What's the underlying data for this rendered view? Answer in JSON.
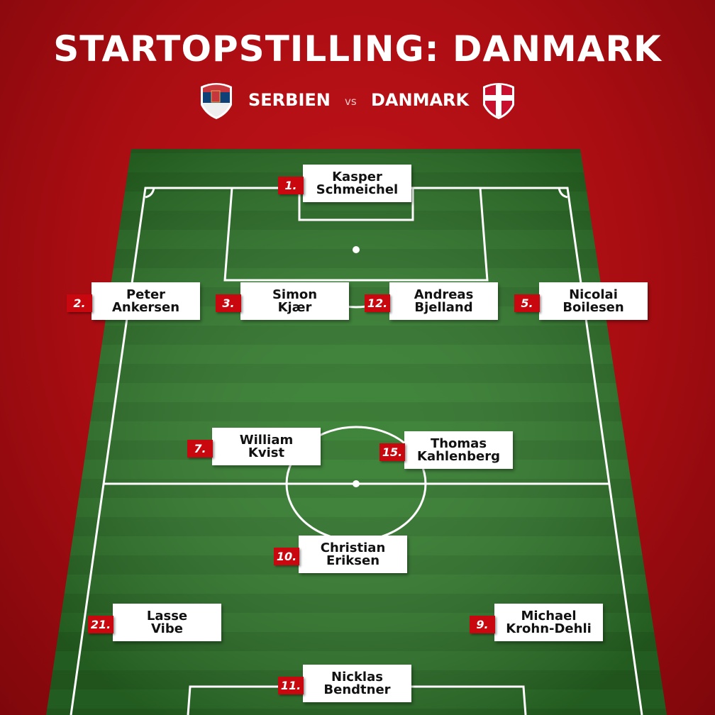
{
  "title": "STARTOPSTILLING: DANMARK",
  "match": {
    "home": "SERBIEN",
    "vs": "VS",
    "away": "DANMARK"
  },
  "players": [
    {
      "number": "1.",
      "first": "Kasper",
      "last": "Schmeichel"
    },
    {
      "number": "2.",
      "first": "Peter",
      "last": "Ankersen"
    },
    {
      "number": "3.",
      "first": "Simon",
      "last": "Kjær"
    },
    {
      "number": "12.",
      "first": "Andreas",
      "last": "Bjelland"
    },
    {
      "number": "5.",
      "first": "Nicolai",
      "last": "Boilesen"
    },
    {
      "number": "7.",
      "first": "William",
      "last": "Kvist"
    },
    {
      "number": "15.",
      "first": "Thomas",
      "last": "Kahlenberg"
    },
    {
      "number": "10.",
      "first": "Christian",
      "last": "Eriksen"
    },
    {
      "number": "21.",
      "first": "Lasse",
      "last": "Vibe"
    },
    {
      "number": "9.",
      "first": "Michael",
      "last": "Krohn-Dehli"
    },
    {
      "number": "11.",
      "first": "Nicklas",
      "last": "Bendtner"
    }
  ]
}
